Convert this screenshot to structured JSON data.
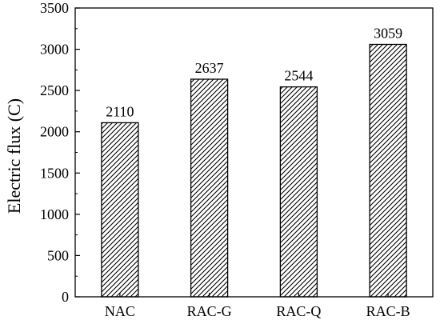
{
  "chart_data": {
    "type": "bar",
    "categories": [
      "NAC",
      "RAC-G",
      "RAC-Q",
      "RAC-B"
    ],
    "values": [
      2110,
      2637,
      2544,
      3059
    ],
    "data_labels": [
      "2110",
      "2637",
      "2544",
      "3059"
    ],
    "title": "",
    "xlabel": "",
    "ylabel": "Electric flux (C)",
    "ylim": [
      0,
      3500
    ],
    "yticks": [
      0,
      500,
      1000,
      1500,
      2000,
      2500,
      3000,
      3500
    ],
    "ytick_labels": [
      "0",
      "500",
      "1000",
      "1500",
      "2000",
      "2500",
      "3000",
      "3500"
    ],
    "y_minor_ticks": true,
    "grid": false,
    "legend": "none",
    "bar_fill": "diagonal-hatch",
    "colors": {
      "bar_stroke": "#000000",
      "hatch": "#000000",
      "bar_background": "#ffffff",
      "axis": "#000000"
    }
  }
}
